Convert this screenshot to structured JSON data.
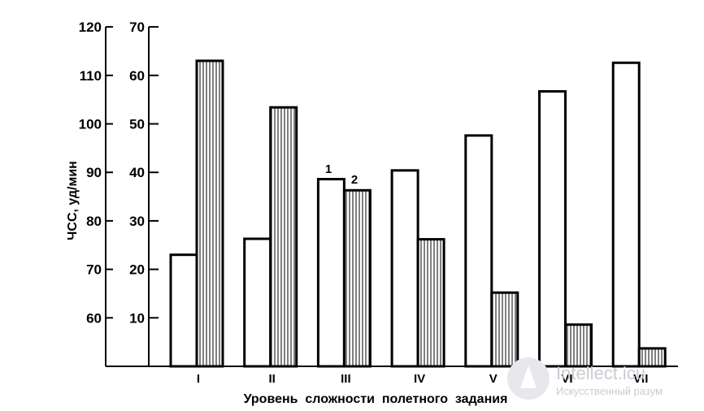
{
  "chart_data": {
    "type": "bar",
    "xlabel": "Уровень  сложности  полетного  задания",
    "ylabel": "ЧСС, уд/мин",
    "y_left": {
      "lim": [
        50,
        120
      ],
      "ticks": [
        "60",
        "70",
        "80",
        "90",
        "100",
        "110",
        "120"
      ]
    },
    "y_right": {
      "lim": [
        0,
        70
      ],
      "ticks": [
        "10",
        "20",
        "30",
        "40",
        "50",
        "60",
        "70"
      ]
    },
    "categories": [
      "I",
      "II",
      "III",
      "IV",
      "V",
      "VI",
      "VII"
    ],
    "series": [
      {
        "name": "1",
        "axis": "left",
        "fill": "open",
        "values": [
          73,
          76.3,
          88.6,
          90.4,
          97.6,
          106.7,
          112.6
        ]
      },
      {
        "name": "2",
        "axis": "right",
        "fill": "hatched",
        "values": [
          63,
          53.4,
          36.3,
          26.2,
          15.2,
          8.6,
          3.7
        ]
      }
    ],
    "legend": "inline labels above group III",
    "grid": false
  },
  "watermark": {
    "title": "Intellect.icu",
    "subtitle": "Искусственный разум"
  }
}
